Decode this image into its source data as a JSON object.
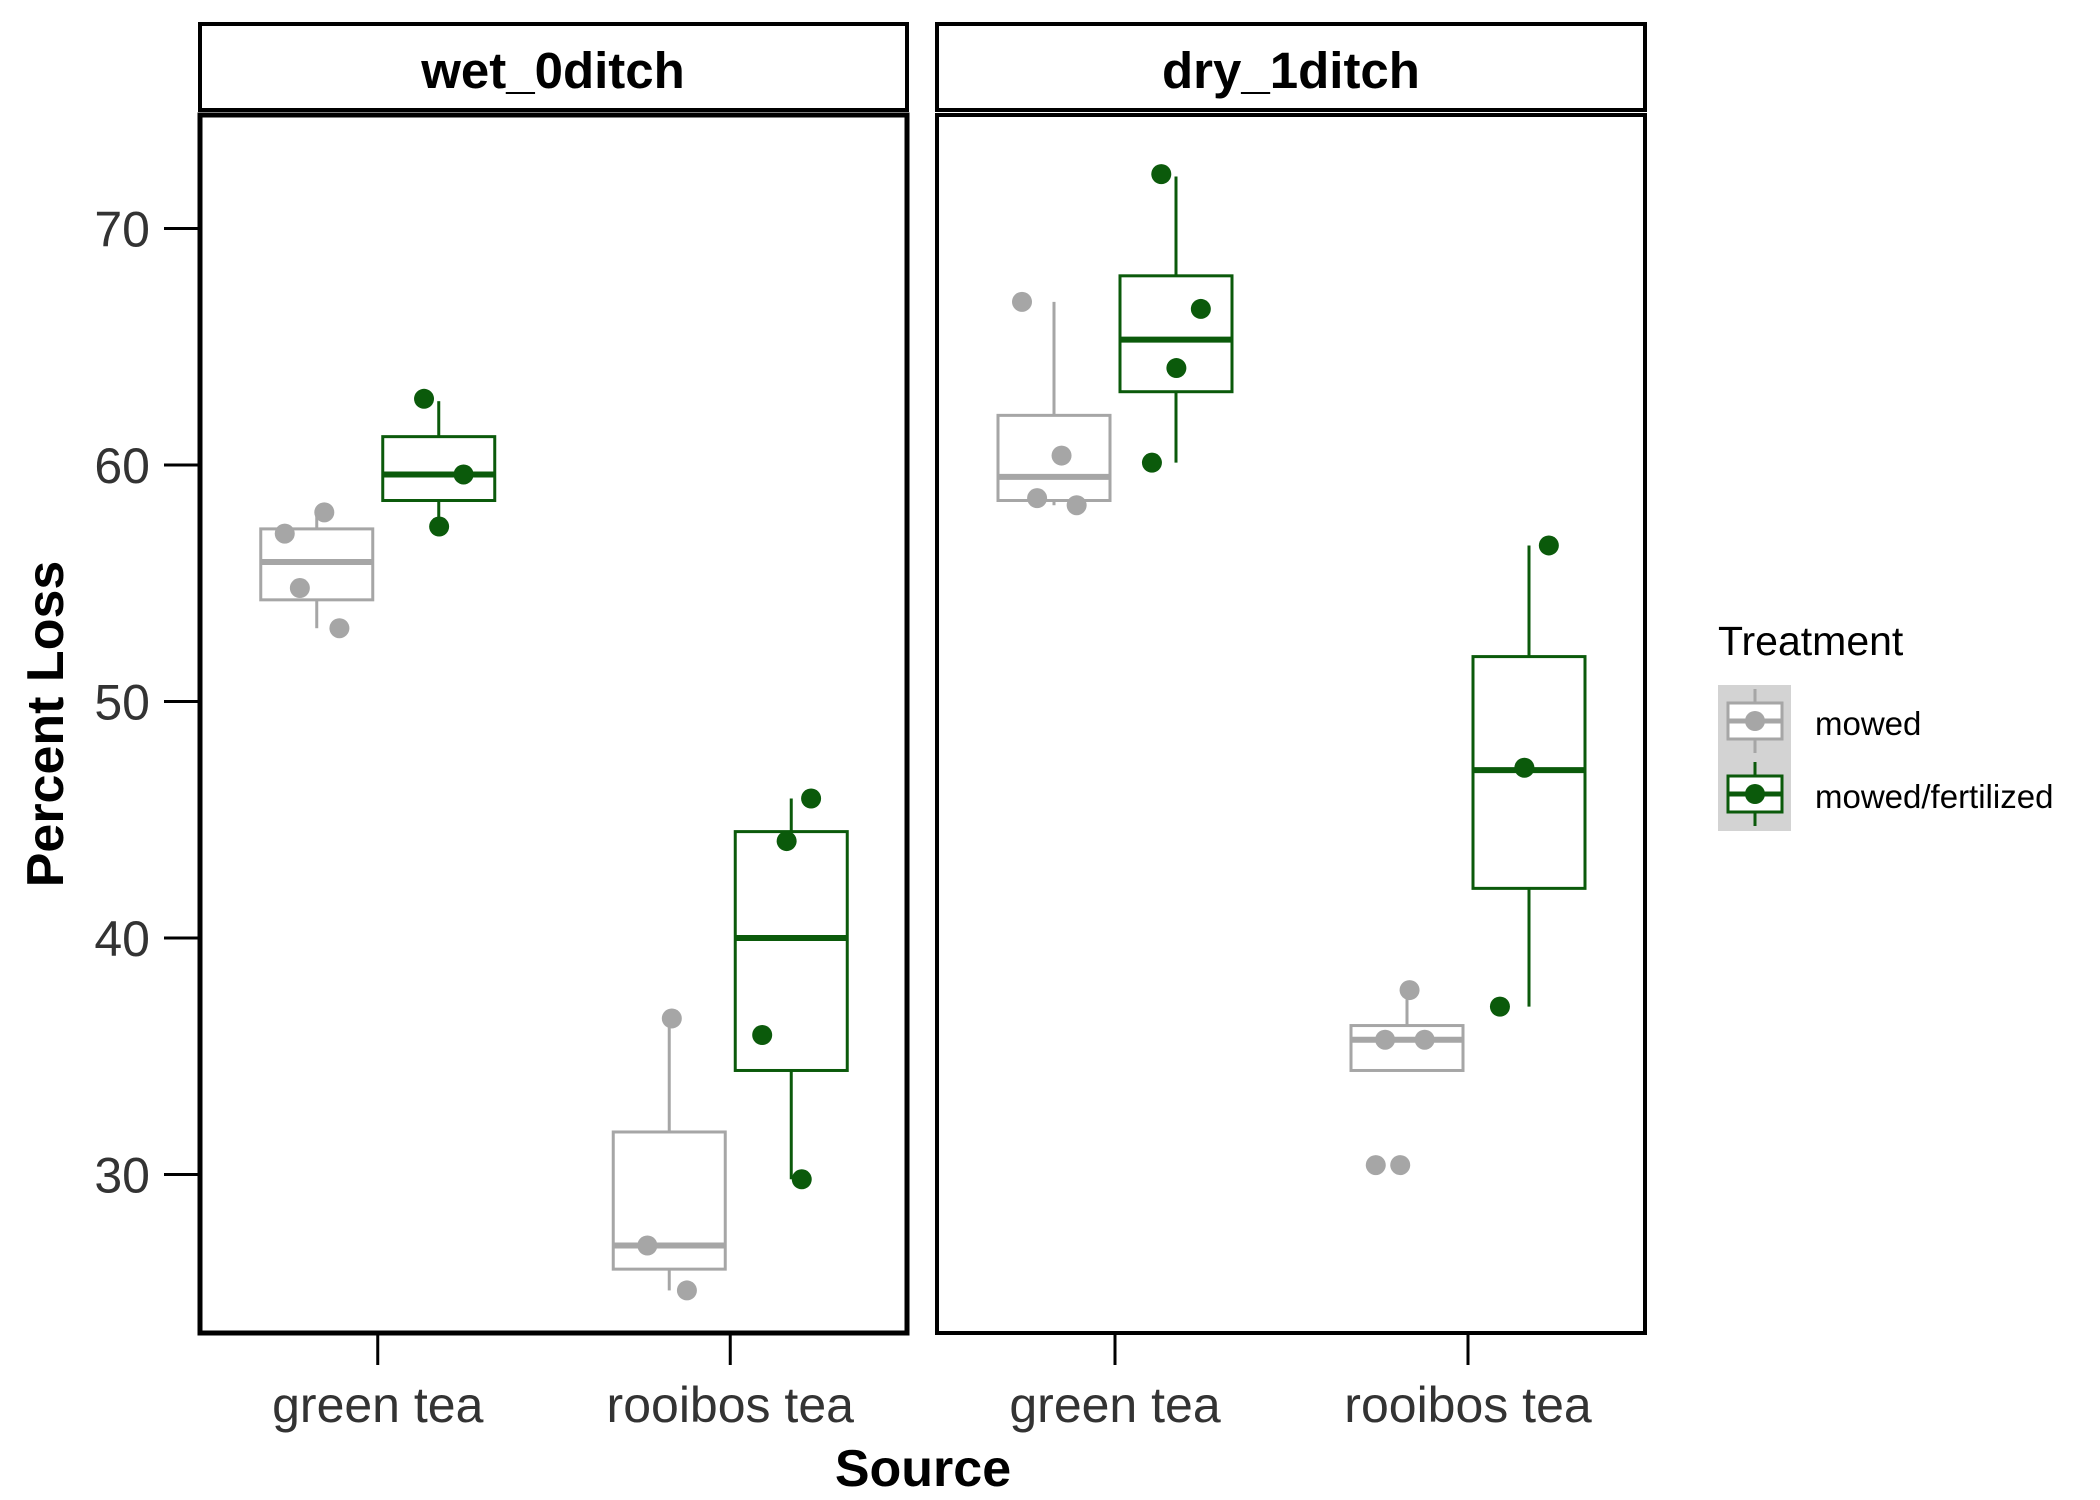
{
  "chart_data": {
    "type": "boxplot",
    "xlabel": "Source",
    "ylabel": "Percent Loss",
    "ylim": [
      23.3,
      74.8
    ],
    "yticks": [
      30,
      40,
      50,
      60,
      70
    ],
    "categories": [
      "green tea",
      "rooibos tea"
    ],
    "legend": {
      "title": "Treatment",
      "placement": "right",
      "entries": [
        {
          "name": "mowed",
          "color": "#a6a6a6"
        },
        {
          "name": "mowed/fertilized",
          "color": "#0b5a0b"
        }
      ]
    },
    "panels": [
      {
        "title": "wet_0ditch",
        "boxes": [
          {
            "category": "green tea",
            "treatment": "mowed",
            "lower_whisker": 53.1,
            "q1": 54.3,
            "median": 55.9,
            "q3": 57.3,
            "upper_whisker": 57.9,
            "points": [
              57.1,
              58.0,
              54.8,
              53.1
            ]
          },
          {
            "category": "green tea",
            "treatment": "mowed/fertilized",
            "lower_whisker": 57.4,
            "q1": 58.5,
            "median": 59.6,
            "q3": 61.2,
            "upper_whisker": 62.7,
            "points": [
              62.8,
              59.6,
              57.4
            ]
          },
          {
            "category": "rooibos tea",
            "treatment": "mowed",
            "lower_whisker": 25.1,
            "q1": 26.0,
            "median": 27.0,
            "q3": 31.8,
            "upper_whisker": 36.6,
            "points": [
              36.6,
              27.0,
              25.1
            ]
          },
          {
            "category": "rooibos tea",
            "treatment": "mowed/fertilized",
            "lower_whisker": 29.8,
            "q1": 34.4,
            "median": 40.0,
            "q3": 44.5,
            "upper_whisker": 45.9,
            "points": [
              45.9,
              44.1,
              35.9,
              29.8
            ]
          }
        ]
      },
      {
        "title": "dry_1ditch",
        "boxes": [
          {
            "category": "green tea",
            "treatment": "mowed",
            "lower_whisker": 58.3,
            "q1": 58.5,
            "median": 59.5,
            "q3": 62.1,
            "upper_whisker": 66.9,
            "points": [
              66.9,
              60.4,
              58.6,
              58.3
            ]
          },
          {
            "category": "green tea",
            "treatment": "mowed/fertilized",
            "lower_whisker": 60.1,
            "q1": 63.1,
            "median": 65.3,
            "q3": 68.0,
            "upper_whisker": 72.2,
            "points": [
              72.3,
              66.6,
              64.1,
              60.1
            ]
          },
          {
            "category": "rooibos tea",
            "treatment": "mowed",
            "lower_whisker": 34.4,
            "q1": 34.4,
            "median": 35.7,
            "q3": 36.3,
            "upper_whisker": 37.8,
            "points": [
              37.8,
              35.7,
              35.7,
              30.4,
              30.4
            ]
          },
          {
            "category": "rooibos tea",
            "treatment": "mowed/fertilized",
            "lower_whisker": 37.1,
            "q1": 42.1,
            "median": 47.1,
            "q3": 51.9,
            "upper_whisker": 56.6,
            "points": [
              56.6,
              47.2,
              37.1
            ]
          }
        ]
      }
    ]
  }
}
